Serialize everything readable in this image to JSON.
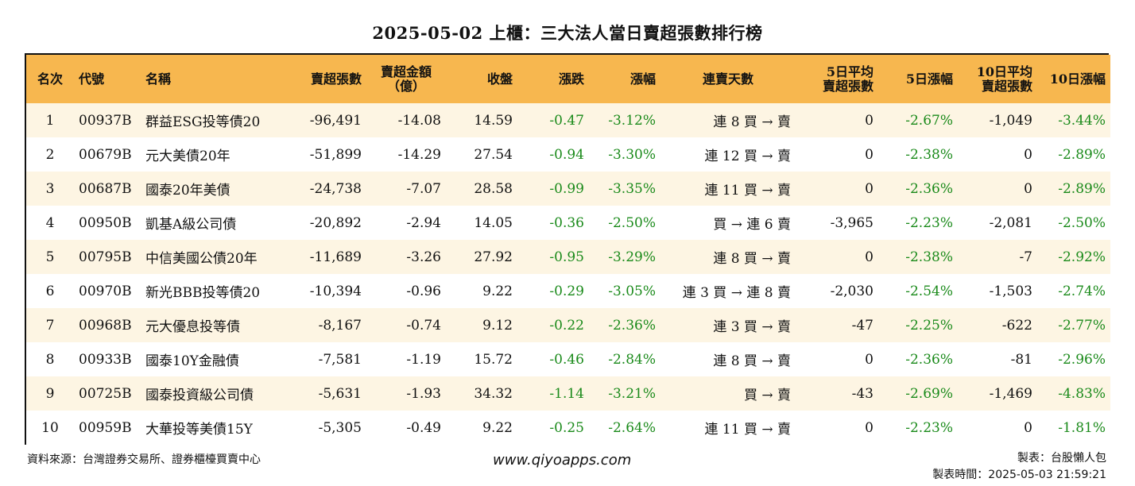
{
  "title": "2025-05-02 上櫃：三大法人當日賣超張數排行榜",
  "headers": {
    "rank": "名次",
    "code": "代號",
    "name": "名稱",
    "sell_lots": "賣超張數",
    "sell_amount_1": "賣超金額",
    "sell_amount_2": "（億）",
    "close": "收盤",
    "change": "漲跌",
    "change_pct": "漲幅",
    "streak": "連賣天數",
    "avg5_1": "5日平均",
    "avg5_2": "賣超張數",
    "pct5": "5日漲幅",
    "avg10_1": "10日平均",
    "avg10_2": "賣超張數",
    "pct10": "10日漲幅"
  },
  "rows": [
    {
      "rank": "1",
      "code": "00937B",
      "name": "群益ESG投等債20",
      "sell_lots": "-96,491",
      "sell_amount": "-14.08",
      "close": "14.59",
      "change": "-0.47",
      "change_pct": "-3.12%",
      "streak": "連 8 買 → 賣",
      "avg5": "0",
      "pct5": "-2.67%",
      "avg10": "-1,049",
      "pct10": "-3.44%"
    },
    {
      "rank": "2",
      "code": "00679B",
      "name": "元大美債20年",
      "sell_lots": "-51,899",
      "sell_amount": "-14.29",
      "close": "27.54",
      "change": "-0.94",
      "change_pct": "-3.30%",
      "streak": "連 12 買 → 賣",
      "avg5": "0",
      "pct5": "-2.38%",
      "avg10": "0",
      "pct10": "-2.89%"
    },
    {
      "rank": "3",
      "code": "00687B",
      "name": "國泰20年美債",
      "sell_lots": "-24,738",
      "sell_amount": "-7.07",
      "close": "28.58",
      "change": "-0.99",
      "change_pct": "-3.35%",
      "streak": "連 11 買 → 賣",
      "avg5": "0",
      "pct5": "-2.36%",
      "avg10": "0",
      "pct10": "-2.89%"
    },
    {
      "rank": "4",
      "code": "00950B",
      "name": "凱基A級公司債",
      "sell_lots": "-20,892",
      "sell_amount": "-2.94",
      "close": "14.05",
      "change": "-0.36",
      "change_pct": "-2.50%",
      "streak": "買 → 連 6 賣",
      "avg5": "-3,965",
      "pct5": "-2.23%",
      "avg10": "-2,081",
      "pct10": "-2.50%"
    },
    {
      "rank": "5",
      "code": "00795B",
      "name": "中信美國公債20年",
      "sell_lots": "-11,689",
      "sell_amount": "-3.26",
      "close": "27.92",
      "change": "-0.95",
      "change_pct": "-3.29%",
      "streak": "連 8 買 → 賣",
      "avg5": "0",
      "pct5": "-2.38%",
      "avg10": "-7",
      "pct10": "-2.92%"
    },
    {
      "rank": "6",
      "code": "00970B",
      "name": "新光BBB投等債20",
      "sell_lots": "-10,394",
      "sell_amount": "-0.96",
      "close": "9.22",
      "change": "-0.29",
      "change_pct": "-3.05%",
      "streak": "連 3 買 → 連 8 賣",
      "avg5": "-2,030",
      "pct5": "-2.54%",
      "avg10": "-1,503",
      "pct10": "-2.74%"
    },
    {
      "rank": "7",
      "code": "00968B",
      "name": "元大優息投等債",
      "sell_lots": "-8,167",
      "sell_amount": "-0.74",
      "close": "9.12",
      "change": "-0.22",
      "change_pct": "-2.36%",
      "streak": "連 3 買 → 賣",
      "avg5": "-47",
      "pct5": "-2.25%",
      "avg10": "-622",
      "pct10": "-2.77%"
    },
    {
      "rank": "8",
      "code": "00933B",
      "name": "國泰10Y金融債",
      "sell_lots": "-7,581",
      "sell_amount": "-1.19",
      "close": "15.72",
      "change": "-0.46",
      "change_pct": "-2.84%",
      "streak": "連 8 買 → 賣",
      "avg5": "0",
      "pct5": "-2.36%",
      "avg10": "-81",
      "pct10": "-2.96%"
    },
    {
      "rank": "9",
      "code": "00725B",
      "name": "國泰投資級公司債",
      "sell_lots": "-5,631",
      "sell_amount": "-1.93",
      "close": "34.32",
      "change": "-1.14",
      "change_pct": "-3.21%",
      "streak": "買 → 賣",
      "avg5": "-43",
      "pct5": "-2.69%",
      "avg10": "-1,469",
      "pct10": "-4.83%"
    },
    {
      "rank": "10",
      "code": "00959B",
      "name": "大華投等美債15Y",
      "sell_lots": "-5,305",
      "sell_amount": "-0.49",
      "close": "9.22",
      "change": "-0.25",
      "change_pct": "-2.64%",
      "streak": "連 11 買 → 賣",
      "avg5": "0",
      "pct5": "-2.23%",
      "avg10": "0",
      "pct10": "-1.81%"
    }
  ],
  "footer": {
    "source": "資料來源：台灣證券交易所、證券櫃檯買賣中心",
    "website": "www.qiyoapps.com",
    "author": "製表：台股懶人包",
    "created": "製表時間：2025-05-03 21:59:21"
  },
  "colors": {
    "header_bg": "#f7b74f",
    "odd_row_bg": "#fdf5e3",
    "positive_green": "#1a8a1a"
  }
}
